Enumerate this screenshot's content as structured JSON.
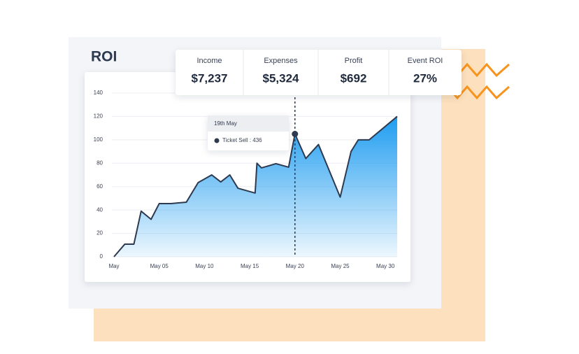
{
  "title": "ROI",
  "stats": [
    {
      "label": "Income",
      "value": "$7,237"
    },
    {
      "label": "Expenses",
      "value": "$5,324"
    },
    {
      "label": "Profit",
      "value": "$692"
    },
    {
      "label": "Event ROI",
      "value": "27%"
    }
  ],
  "tooltip": {
    "title": "19th May",
    "text": "Ticket Sell : 436"
  },
  "chart_data": {
    "type": "area",
    "x": [
      0,
      1.2,
      2.2,
      3.0,
      4.1,
      5.0,
      6.3,
      8.0,
      9.3,
      10.8,
      11.8,
      12.8,
      13.7,
      15.6,
      15.8,
      16.3,
      17.9,
      19.3,
      20.0,
      21.2,
      22.6,
      25.0,
      26.2,
      27.0,
      28.2,
      31.3
    ],
    "values": [
      0,
      10.8,
      10.8,
      39,
      32,
      45.5,
      45.5,
      46.7,
      63.4,
      70,
      64,
      70,
      58.6,
      54.5,
      80,
      76,
      79.6,
      76.6,
      105,
      84,
      96,
      51,
      90,
      100,
      100,
      120
    ],
    "xlim": [
      0,
      31.3
    ],
    "xticks": [
      {
        "value": 0,
        "label": "May"
      },
      {
        "value": 5,
        "label": "May 05"
      },
      {
        "value": 10,
        "label": "May 10"
      },
      {
        "value": 15,
        "label": "May 15"
      },
      {
        "value": 20,
        "label": "May 20"
      },
      {
        "value": 25,
        "label": "May 25"
      },
      {
        "value": 30,
        "label": "May 30"
      }
    ],
    "ylim": [
      0,
      140
    ],
    "yticks": [
      0,
      20,
      40,
      60,
      80,
      100,
      120,
      140
    ],
    "grid": true,
    "color": "#2d3a4f",
    "fill": "#1e9cf0"
  }
}
